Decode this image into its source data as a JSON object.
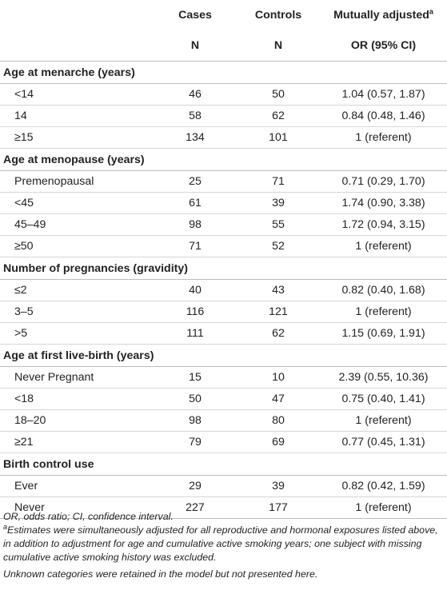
{
  "header": {
    "cases": "Cases",
    "controls": "Controls",
    "mutually_adjusted": "Mutually adjusted",
    "mutually_adjusted_sup": "a",
    "n1": "N",
    "n2": "N",
    "or_ci": "OR (95% CI)"
  },
  "sections": [
    {
      "title": "Age at menarche (years)",
      "rows": [
        {
          "label": "<14",
          "cases": "46",
          "controls": "50",
          "or": "1.04 (0.57, 1.87)"
        },
        {
          "label": "14",
          "cases": "58",
          "controls": "62",
          "or": "0.84 (0.48, 1.46)"
        },
        {
          "label": "≥15",
          "cases": "134",
          "controls": "101",
          "or": "1 (referent)"
        }
      ]
    },
    {
      "title": "Age at menopause (years)",
      "rows": [
        {
          "label": "Premenopausal",
          "cases": "25",
          "controls": "71",
          "or": "0.71 (0.29, 1.70)"
        },
        {
          "label": "<45",
          "cases": "61",
          "controls": "39",
          "or": "1.74 (0.90, 3.38)"
        },
        {
          "label": "45–49",
          "cases": "98",
          "controls": "55",
          "or": "1.72 (0.94, 3.15)"
        },
        {
          "label": "≥50",
          "cases": "71",
          "controls": "52",
          "or": "1 (referent)"
        }
      ]
    },
    {
      "title": "Number of pregnancies (gravidity)",
      "rows": [
        {
          "label": "≤2",
          "cases": "40",
          "controls": "43",
          "or": "0.82 (0.40, 1.68)"
        },
        {
          "label": "3–5",
          "cases": "116",
          "controls": "121",
          "or": "1 (referent)"
        },
        {
          "label": ">5",
          "cases": "111",
          "controls": "62",
          "or": "1.15 (0.69, 1.91)"
        }
      ]
    },
    {
      "title": "Age at first live-birth (years)",
      "rows": [
        {
          "label": "Never Pregnant",
          "cases": "15",
          "controls": "10",
          "or": "2.39 (0.55, 10.36)"
        },
        {
          "label": "<18",
          "cases": "50",
          "controls": "47",
          "or": "0.75 (0.40, 1.41)"
        },
        {
          "label": "18–20",
          "cases": "98",
          "controls": "80",
          "or": "1 (referent)"
        },
        {
          "label": "≥21",
          "cases": "79",
          "controls": "69",
          "or": "0.77 (0.45, 1.31)"
        }
      ]
    },
    {
      "title": "Birth control use",
      "rows": [
        {
          "label": "Ever",
          "cases": "29",
          "controls": "39",
          "or": "0.82 (0.42, 1.59)"
        },
        {
          "label": "Never",
          "cases": "227",
          "controls": "177",
          "or": "1 (referent)"
        }
      ]
    }
  ],
  "footnotes": {
    "abbrev": "OR, odds ratio; CI, confidence interval.",
    "a_marker": "a",
    "a_text": "Estimates were simultaneously adjusted for all reproductive and hormonal exposures listed above, in addition to adjustment for age and cumulative active smoking years; one subject with missing cumulative active smoking history was excluded.",
    "unknown": "Unknown categories were retained in the model but not presented here."
  }
}
